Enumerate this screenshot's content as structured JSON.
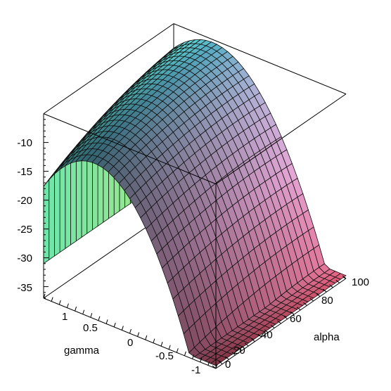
{
  "chart_data": {
    "type": "surface3d",
    "title": "",
    "xlabel": "alpha",
    "ylabel": "gamma",
    "zlabel": "",
    "xlim": [
      0,
      100
    ],
    "ylim": [
      -1,
      1.2
    ],
    "zlim": [
      -37,
      -5
    ],
    "x_ticks": [
      "0",
      "20",
      "40",
      "60",
      "80",
      "100"
    ],
    "y_ticks": [
      "1",
      "0.5",
      "0",
      "-0.5",
      "-1"
    ],
    "z_ticks": [
      "-10",
      "-15",
      "-20",
      "-25",
      "-30",
      "-35"
    ],
    "surface": {
      "description_values": "z as a function of (alpha, gamma); max about -5.5 near gamma≈0.6, alpha≈100; min about -36 at gamma=-1",
      "peak_z": -5.5,
      "edge_z_gamma_minus1": -36,
      "edge_z_gamma_max_alpha0": -29
    },
    "grid": false,
    "colormap": [
      "#63f2e0",
      "#5ab0c8",
      "#b5b3d8",
      "#e6a8d8",
      "#e45a76",
      "#9ee07a"
    ]
  }
}
